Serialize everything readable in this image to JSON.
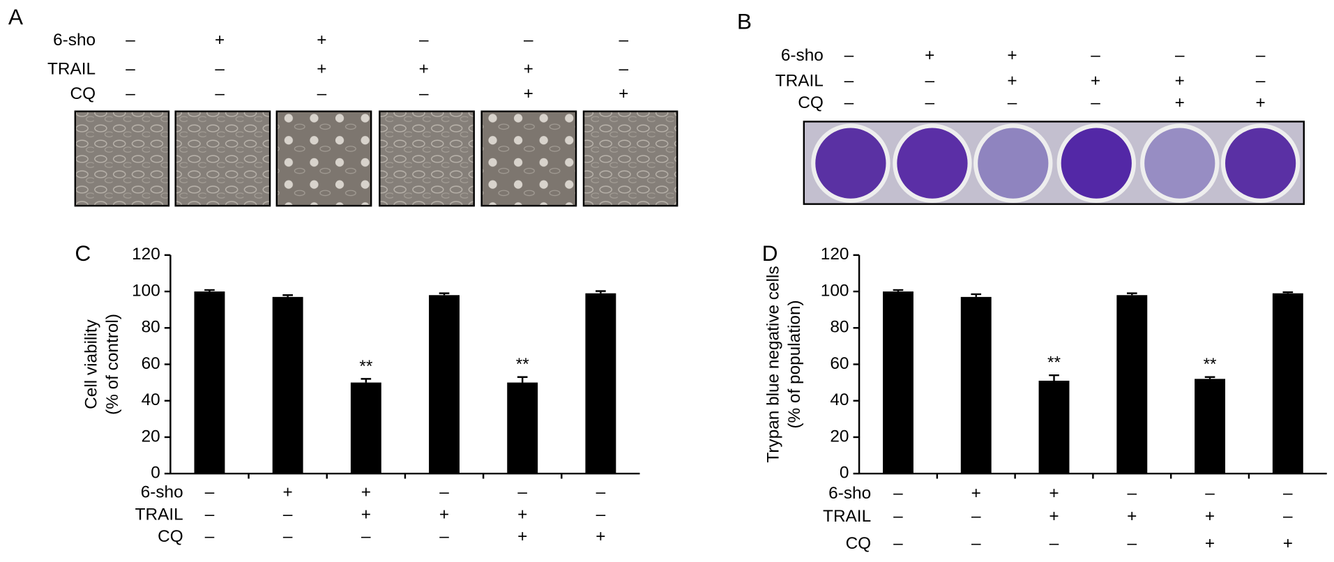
{
  "panels": [
    {
      "label": "A",
      "treatments": [
        {
          "name": "6-sho",
          "signs": [
            "–",
            "+",
            "+",
            "–",
            "–",
            "–"
          ]
        },
        {
          "name": "TRAIL",
          "signs": [
            "–",
            "–",
            "+",
            "+",
            "+",
            "–"
          ]
        },
        {
          "name": "CQ",
          "signs": [
            "–",
            "–",
            "–",
            "–",
            "+",
            "+"
          ]
        }
      ]
    },
    {
      "label": "B",
      "treatments": [
        {
          "name": "6-sho",
          "signs": [
            "–",
            "+",
            "+",
            "–",
            "–",
            "–"
          ]
        },
        {
          "name": "TRAIL",
          "signs": [
            "–",
            "–",
            "+",
            "+",
            "+",
            "–"
          ]
        },
        {
          "name": "CQ",
          "signs": [
            "–",
            "–",
            "–",
            "–",
            "+",
            "+"
          ]
        }
      ]
    }
  ],
  "chart_data": [
    {
      "type": "bar",
      "label": "C",
      "ylabel": [
        "Cell viability",
        "(% of control)"
      ],
      "values": [
        100,
        97,
        50,
        98,
        50,
        99
      ],
      "errors": [
        0.8,
        1,
        2,
        1,
        3,
        1.2
      ],
      "significance": [
        null,
        null,
        "**",
        null,
        "**",
        null
      ],
      "ylim": [
        0,
        120
      ],
      "yticks": [
        0,
        20,
        40,
        60,
        80,
        100,
        120
      ],
      "color": "#000000",
      "treatments": [
        {
          "name": "6-sho",
          "signs": [
            "–",
            "+",
            "+",
            "–",
            "–",
            "–"
          ]
        },
        {
          "name": "TRAIL",
          "signs": [
            "–",
            "–",
            "+",
            "+",
            "+",
            "–"
          ]
        },
        {
          "name": "CQ",
          "signs": [
            "–",
            "–",
            "–",
            "–",
            "+",
            "+"
          ]
        }
      ]
    },
    {
      "type": "bar",
      "label": "D",
      "ylabel": [
        "Trypan blue negative cells",
        "(% of population)"
      ],
      "values": [
        100,
        97,
        51,
        98,
        52,
        99
      ],
      "errors": [
        0.8,
        1.5,
        3,
        1,
        1,
        0.6
      ],
      "significance": [
        null,
        null,
        "**",
        null,
        "**",
        null
      ],
      "ylim": [
        0,
        120
      ],
      "yticks": [
        0,
        20,
        40,
        60,
        80,
        100,
        120
      ],
      "color": "#000000",
      "treatments": [
        {
          "name": "6-sho",
          "signs": [
            "–",
            "+",
            "+",
            "–",
            "–",
            "–"
          ]
        },
        {
          "name": "TRAIL",
          "signs": [
            "–",
            "–",
            "+",
            "+",
            "+",
            "–"
          ]
        },
        {
          "name": "CQ",
          "signs": [
            "–",
            "–",
            "–",
            "–",
            "+",
            "+"
          ]
        }
      ]
    }
  ]
}
